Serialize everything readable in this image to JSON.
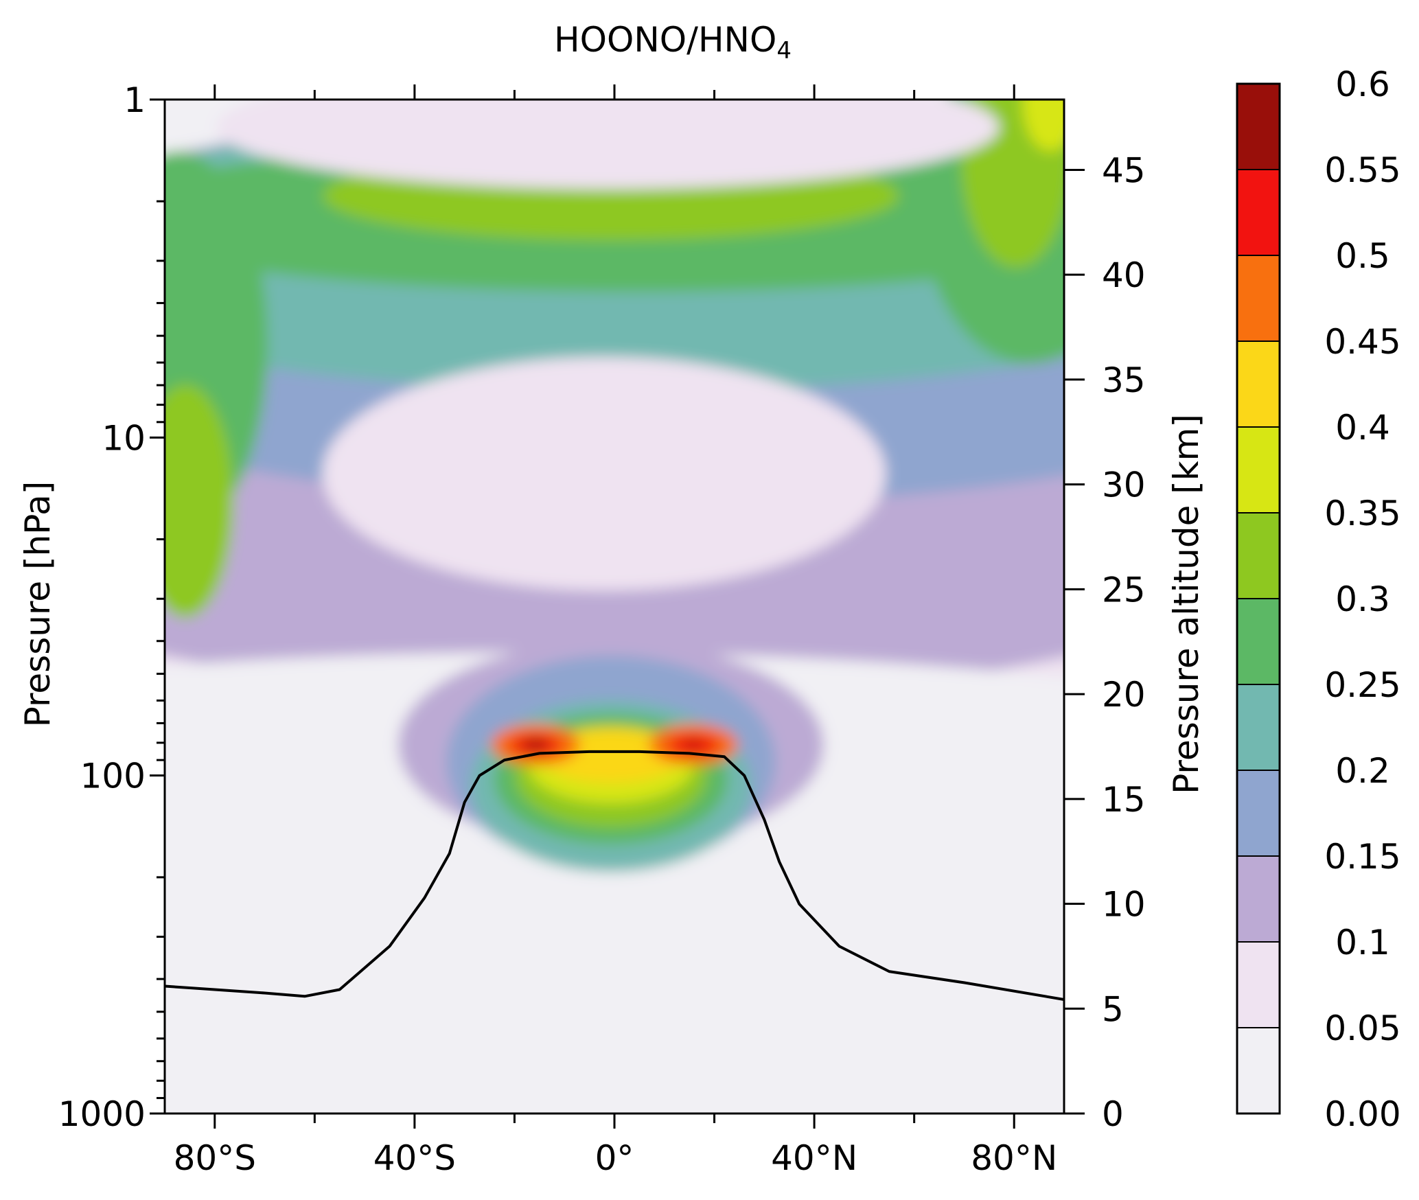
{
  "chart_data": {
    "type": "heatmap",
    "title": "HOONO/HNO",
    "title_subscript": "4",
    "xlabel": "",
    "ylabel": "Pressure [hPa]",
    "y2label": "Pressure altitude [km]",
    "xlim": [
      -90,
      90
    ],
    "ylim": [
      1000,
      1
    ],
    "y_scale": "log",
    "x_ticks": [
      {
        "value": -80,
        "label": "80°S"
      },
      {
        "value": -40,
        "label": "40°S"
      },
      {
        "value": 0,
        "label": "0°"
      },
      {
        "value": 40,
        "label": "40°N"
      },
      {
        "value": 80,
        "label": "80°N"
      }
    ],
    "y_ticks": [
      {
        "value": 1,
        "label": "1"
      },
      {
        "value": 10,
        "label": "10"
      },
      {
        "value": 100,
        "label": "100"
      },
      {
        "value": 1000,
        "label": "1000"
      }
    ],
    "y2_ticks": [
      {
        "value": 0,
        "label": "0"
      },
      {
        "value": 5,
        "label": "5"
      },
      {
        "value": 10,
        "label": "10"
      },
      {
        "value": 15,
        "label": "15"
      },
      {
        "value": 20,
        "label": "20"
      },
      {
        "value": 25,
        "label": "25"
      },
      {
        "value": 30,
        "label": "30"
      },
      {
        "value": 35,
        "label": "35"
      },
      {
        "value": 40,
        "label": "40"
      },
      {
        "value": 45,
        "label": "45"
      }
    ],
    "colorbar": {
      "levels": [
        "0.00",
        "0.05",
        "0.1",
        "0.15",
        "0.2",
        "0.25",
        "0.3",
        "0.35",
        "0.4",
        "0.45",
        "0.5",
        "0.55",
        "0.6"
      ],
      "colors": [
        "#f1f0f4",
        "#efe3f1",
        "#bcaad4",
        "#8fa5cf",
        "#72b8b0",
        "#5cb865",
        "#8ec820",
        "#d7e614",
        "#fbd718",
        "#f8700f",
        "#f21310",
        "#990f0a"
      ]
    },
    "tropopause_line": {
      "x": [
        -90,
        -80,
        -70,
        -62,
        -55,
        -45,
        -38,
        -33,
        -30,
        -27,
        -22,
        -15,
        -5,
        5,
        15,
        22,
        26,
        30,
        33,
        37,
        45,
        55,
        70,
        90
      ],
      "y": [
        420,
        430,
        440,
        450,
        430,
        320,
        230,
        170,
        120,
        100,
        90,
        86,
        85,
        85,
        86,
        88,
        100,
        135,
        180,
        240,
        320,
        380,
        410,
        460
      ]
    }
  }
}
